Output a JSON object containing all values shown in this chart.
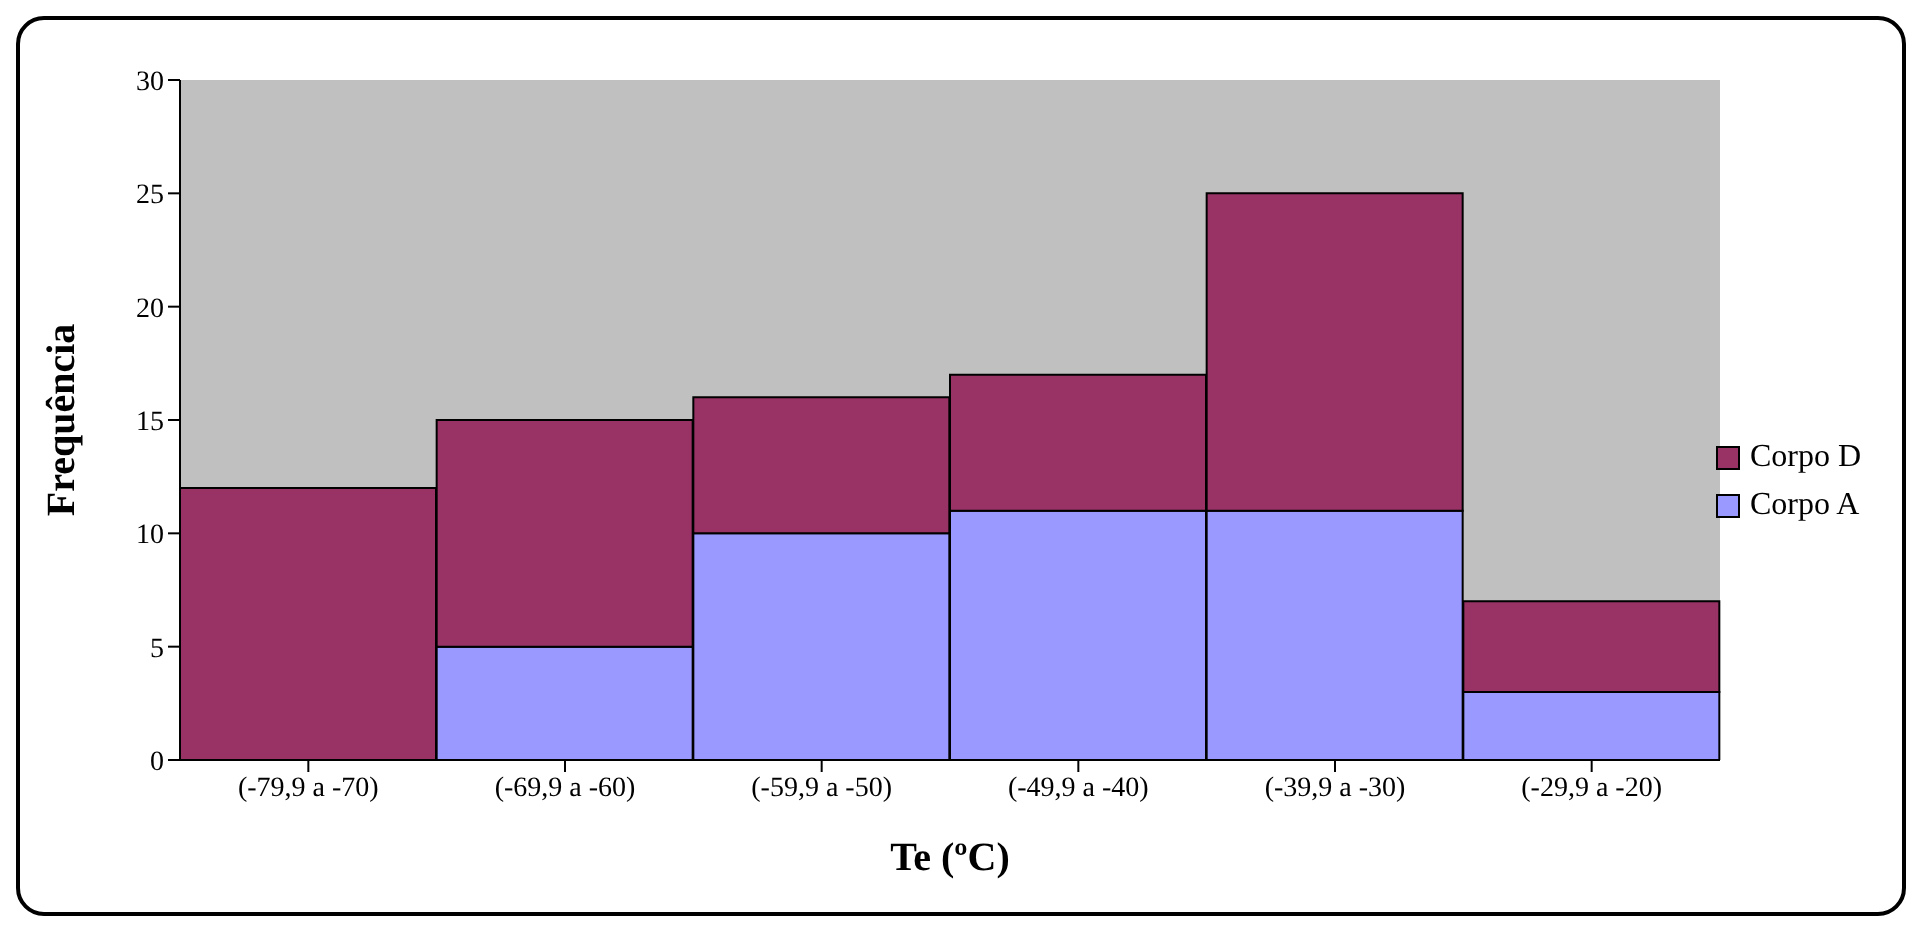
{
  "chart_data": {
    "type": "bar",
    "stacked": true,
    "xlabel": "Te (ºC)",
    "ylabel": "Frequência",
    "categories": [
      "(-79,9 a -70)",
      "(-69,9 a -60)",
      "(-59,9 a -50)",
      "(-49,9 a -40)",
      "(-39,9 a -30)",
      "(-29,9 a -20)"
    ],
    "series": [
      {
        "name": "Corpo A",
        "color": "#9999ff",
        "values": [
          0,
          5,
          10,
          11,
          11,
          3
        ]
      },
      {
        "name": "Corpo D",
        "color": "#993366",
        "values": [
          12,
          10,
          6,
          6,
          14,
          4
        ]
      }
    ],
    "ylim": [
      0,
      30
    ],
    "yticks": [
      0,
      5,
      10,
      15,
      20,
      25,
      30
    ],
    "grid": false,
    "legend": "right"
  }
}
